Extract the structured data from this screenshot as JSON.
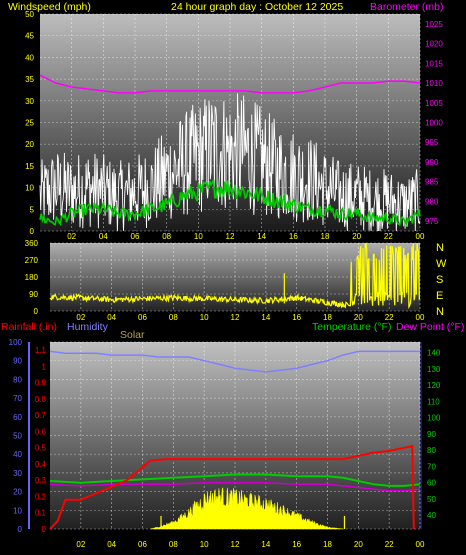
{
  "header": {
    "left_label": "Windspeed (mph)",
    "title": "24 hour graph day : October 12 2025",
    "right_label": "Barometer (mb)"
  },
  "mid": {
    "labels": [
      "N",
      "W",
      "S",
      "E",
      "N"
    ]
  },
  "bottom_header": {
    "rain_label": "Rainfall (.in)",
    "humidity_label": "Humidity",
    "solar_label": "Solar",
    "temp_label": "Temperature (°F)",
    "dew_label": "Dew Point (°F)"
  },
  "colors": {
    "wind": "#ffffff",
    "gust": "#00cc00",
    "baro": "#ff00ff",
    "dir": "#ffff00",
    "rain": "#ff0000",
    "humidity": "#8080ff",
    "solar": "#ffff00",
    "temp": "#00cc00",
    "dew": "#cc00cc",
    "rain_axis": "#ff0000",
    "humidity_axis": "#6666ff",
    "temp_axis": "#00cc00",
    "baro_axis": "#ff00ff",
    "header_yellow": "#ffff00"
  },
  "chart_data": [
    {
      "type": "line",
      "name": "wind_baro",
      "x_ticks": [
        "02",
        "04",
        "06",
        "08",
        "10",
        "12",
        "14",
        "16",
        "18",
        "20",
        "22",
        "00"
      ],
      "y_left_ticks": [
        0,
        5,
        10,
        15,
        20,
        25,
        30,
        35,
        40,
        45,
        50
      ],
      "y_left_lim": [
        0,
        50
      ],
      "y_right_ticks": [
        975,
        980,
        985,
        990,
        995,
        1000,
        1005,
        1010,
        1015,
        1020,
        1025
      ],
      "y_right_lim": [
        972.5,
        1027.5
      ],
      "series": [
        {
          "name": "Windspeed (mph)",
          "axis": "left",
          "x": [
            0,
            1,
            2,
            3,
            4,
            5,
            6,
            7,
            8,
            9,
            10,
            11,
            12,
            13,
            14,
            15,
            16,
            17,
            18,
            19,
            20,
            21,
            22,
            23,
            24
          ],
          "values": [
            8,
            10,
            9,
            10,
            9,
            8,
            9,
            10,
            13,
            15,
            17,
            19,
            18,
            18,
            16,
            14,
            13,
            12,
            10,
            8,
            8,
            7,
            7,
            6,
            7
          ]
        },
        {
          "name": "Gust",
          "axis": "left",
          "x": [
            0,
            1,
            2,
            3,
            4,
            5,
            6,
            7,
            8,
            9,
            10,
            11,
            12,
            13,
            14,
            15,
            16,
            17,
            18,
            19,
            20,
            21,
            22,
            23,
            24
          ],
          "values": [
            3,
            2,
            4,
            5,
            5,
            4,
            4,
            5,
            6,
            8,
            9,
            10,
            10,
            9,
            8,
            7,
            6,
            5,
            5,
            4,
            4,
            3,
            3,
            2,
            4
          ]
        },
        {
          "name": "Barometer (mb)",
          "axis": "right",
          "x": [
            0,
            1,
            2,
            3,
            4,
            5,
            6,
            7,
            8,
            9,
            10,
            11,
            12,
            13,
            14,
            15,
            16,
            17,
            18,
            19,
            20,
            21,
            22,
            23,
            24
          ],
          "values": [
            1012,
            1010,
            1009,
            1008.5,
            1008,
            1007.5,
            1007.5,
            1008,
            1008,
            1008,
            1008,
            1008,
            1008,
            1008,
            1007.5,
            1007.5,
            1007.5,
            1008,
            1009,
            1010,
            1010,
            1010,
            1010.5,
            1010.5,
            1010
          ]
        }
      ]
    },
    {
      "type": "scatter",
      "name": "wind_direction",
      "y_ticks": [
        0,
        90,
        180,
        270,
        360
      ],
      "y_lim": [
        0,
        360
      ],
      "series": [
        {
          "name": "Wind direction",
          "x": [
            0,
            2,
            4,
            6,
            8,
            10,
            12,
            14,
            16,
            18,
            19.5,
            20,
            20.5,
            21,
            21.5,
            22,
            22.5,
            23,
            23.5,
            24
          ],
          "values": [
            75,
            70,
            60,
            65,
            70,
            65,
            60,
            55,
            70,
            45,
            30,
            340,
            120,
            330,
            80,
            300,
            200,
            340,
            150,
            320
          ]
        }
      ]
    },
    {
      "type": "line",
      "name": "rain_humidity_temp",
      "y_rain_ticks": [
        0,
        0.1,
        0.2,
        0.3,
        0.4,
        0.5,
        0.6,
        0.7,
        0.8,
        0.9,
        1,
        1.1
      ],
      "y_rain_lim": [
        0,
        1.15
      ],
      "y_humidity_ticks": [
        0,
        10,
        20,
        30,
        40,
        50,
        60,
        70,
        80,
        90,
        100
      ],
      "y_humidity_lim": [
        0,
        100
      ],
      "y_temp_ticks": [
        40,
        50,
        60,
        70,
        80,
        90,
        100,
        110,
        120,
        130,
        140
      ],
      "y_temp_lim": [
        31.5,
        146.5
      ],
      "series": [
        {
          "name": "Rainfall (.in)",
          "axis": "rain",
          "x": [
            0,
            0.5,
            1,
            2,
            3,
            4,
            5,
            6,
            6.5,
            7.5,
            9,
            12,
            16,
            19,
            20,
            21,
            22,
            23,
            23.5,
            23.6
          ],
          "values": [
            0,
            0.05,
            0.18,
            0.18,
            0.22,
            0.26,
            0.3,
            0.38,
            0.42,
            0.43,
            0.43,
            0.43,
            0.43,
            0.43,
            0.45,
            0.47,
            0.48,
            0.5,
            0.51,
            0
          ]
        },
        {
          "name": "Humidity",
          "axis": "humidity",
          "x": [
            0,
            1,
            2,
            3,
            4,
            5,
            6,
            7,
            8,
            9,
            10,
            11,
            12,
            13,
            14,
            15,
            16,
            17,
            18,
            19,
            20,
            21,
            22,
            23,
            24
          ],
          "values": [
            95,
            94,
            94,
            94,
            93,
            93,
            93,
            92,
            92,
            92,
            90,
            88,
            86,
            85,
            84,
            85,
            86,
            88,
            90,
            93,
            95,
            95,
            95,
            95,
            95
          ]
        },
        {
          "name": "Temperature (°F)",
          "axis": "temp",
          "x": [
            0,
            2,
            4,
            6,
            8,
            10,
            12,
            14,
            16,
            18,
            19,
            20,
            21,
            22,
            23,
            24
          ],
          "values": [
            61,
            60,
            61,
            62,
            63,
            64,
            65,
            65,
            64,
            64,
            63,
            61,
            59,
            58,
            58,
            59
          ]
        },
        {
          "name": "Dew Point (°F)",
          "axis": "temp",
          "x": [
            0,
            2,
            4,
            6,
            8,
            10,
            12,
            14,
            16,
            18,
            19,
            20,
            21,
            22,
            23,
            24
          ],
          "values": [
            59,
            58,
            59,
            59,
            59,
            60,
            60,
            60,
            59,
            59,
            58,
            57,
            56,
            55,
            55,
            56
          ]
        },
        {
          "name": "Solar",
          "axis": "humidity",
          "x": [
            6.5,
            7,
            8,
            9,
            10,
            11,
            12,
            13,
            14,
            15,
            16,
            17,
            18,
            19
          ],
          "values": [
            0,
            1,
            4,
            10,
            18,
            20,
            19,
            17,
            15,
            12,
            8,
            4,
            1,
            0
          ]
        }
      ]
    }
  ]
}
